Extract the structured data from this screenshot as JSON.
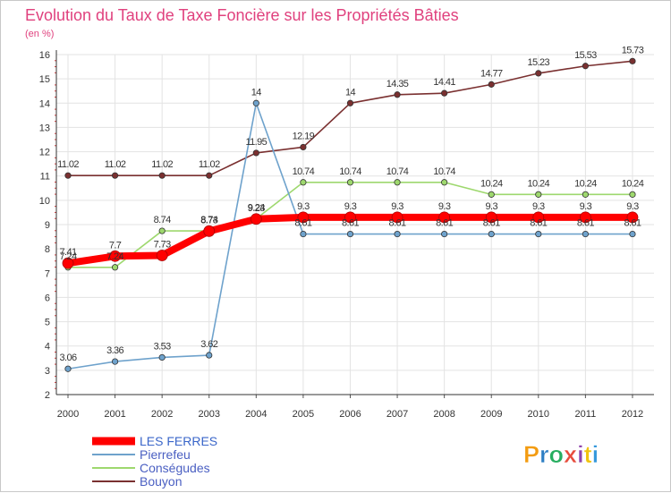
{
  "chart_data": {
    "type": "line",
    "title": "Evolution du Taux de Taxe Foncière sur les Propriétés Bâties",
    "unit_label": "(en %)",
    "xlabel": "",
    "ylabel": "",
    "ylim": [
      2,
      16
    ],
    "y_ticks": [
      2,
      3,
      4,
      5,
      6,
      7,
      8,
      9,
      10,
      11,
      12,
      13,
      14,
      15,
      16
    ],
    "categories": [
      "2000",
      "2001",
      "2002",
      "2003",
      "2004",
      "2005",
      "2006",
      "2007",
      "2008",
      "2009",
      "2010",
      "2011",
      "2012"
    ],
    "grid": true,
    "legend_position": "bottom-left",
    "series": [
      {
        "name": "Bouyon",
        "color": "#7a3030",
        "values": [
          11.02,
          11.02,
          11.02,
          11.02,
          11.95,
          12.19,
          14,
          14.35,
          14.41,
          14.77,
          15.23,
          15.53,
          15.73
        ],
        "labels": [
          "11.02",
          "11.02",
          "11.02",
          "11.02",
          "11.95",
          "12.19",
          "14",
          "14.35",
          "14.41",
          "14.77",
          "15.23",
          "15.53",
          "15.73"
        ]
      },
      {
        "name": "Conségudes",
        "color": "#9ed86e",
        "values": [
          7.24,
          7.24,
          8.74,
          8.74,
          9.24,
          10.74,
          10.74,
          10.74,
          10.74,
          10.24,
          10.24,
          10.24,
          10.24
        ],
        "labels": [
          "7.24",
          "7.24",
          "8.74",
          "8.74",
          "9.24",
          "10.74",
          "10.74",
          "10.74",
          "10.74",
          "10.24",
          "10.24",
          "10.24",
          "10.24"
        ]
      },
      {
        "name": "Pierrefeu",
        "color": "#6ea2cc",
        "values": [
          3.06,
          3.36,
          3.53,
          3.62,
          14,
          8.61,
          8.61,
          8.61,
          8.61,
          8.61,
          8.61,
          8.61,
          8.61
        ],
        "labels": [
          "3.06",
          "3.36",
          "3.53",
          "3.62",
          "14",
          "8.61",
          "8.61",
          "8.61",
          "8.61",
          "8.61",
          "8.61",
          "8.61",
          "8.61"
        ]
      },
      {
        "name": "LES FERRES",
        "color": "#ff0000",
        "values": [
          7.41,
          7.7,
          7.73,
          8.73,
          9.23,
          9.3,
          9.3,
          9.3,
          9.3,
          9.3,
          9.3,
          9.3,
          9.3
        ],
        "labels": [
          "7.41",
          "7.7",
          "7.73",
          "8.73",
          "9.23",
          "9.3",
          "9.3",
          "9.3",
          "9.3",
          "9.3",
          "9.3",
          "9.3",
          "9.3"
        ]
      }
    ],
    "legend": [
      "LES FERRES",
      "Pierrefeu",
      "Conségudes",
      "Bouyon"
    ]
  },
  "branding": {
    "logo_text": "Proxiti",
    "letter_colors": [
      "#f39c12",
      "#2e7fc4",
      "#27ae60",
      "#e74c3c",
      "#8e44ad",
      "#f1c40f",
      "#3498db"
    ]
  }
}
